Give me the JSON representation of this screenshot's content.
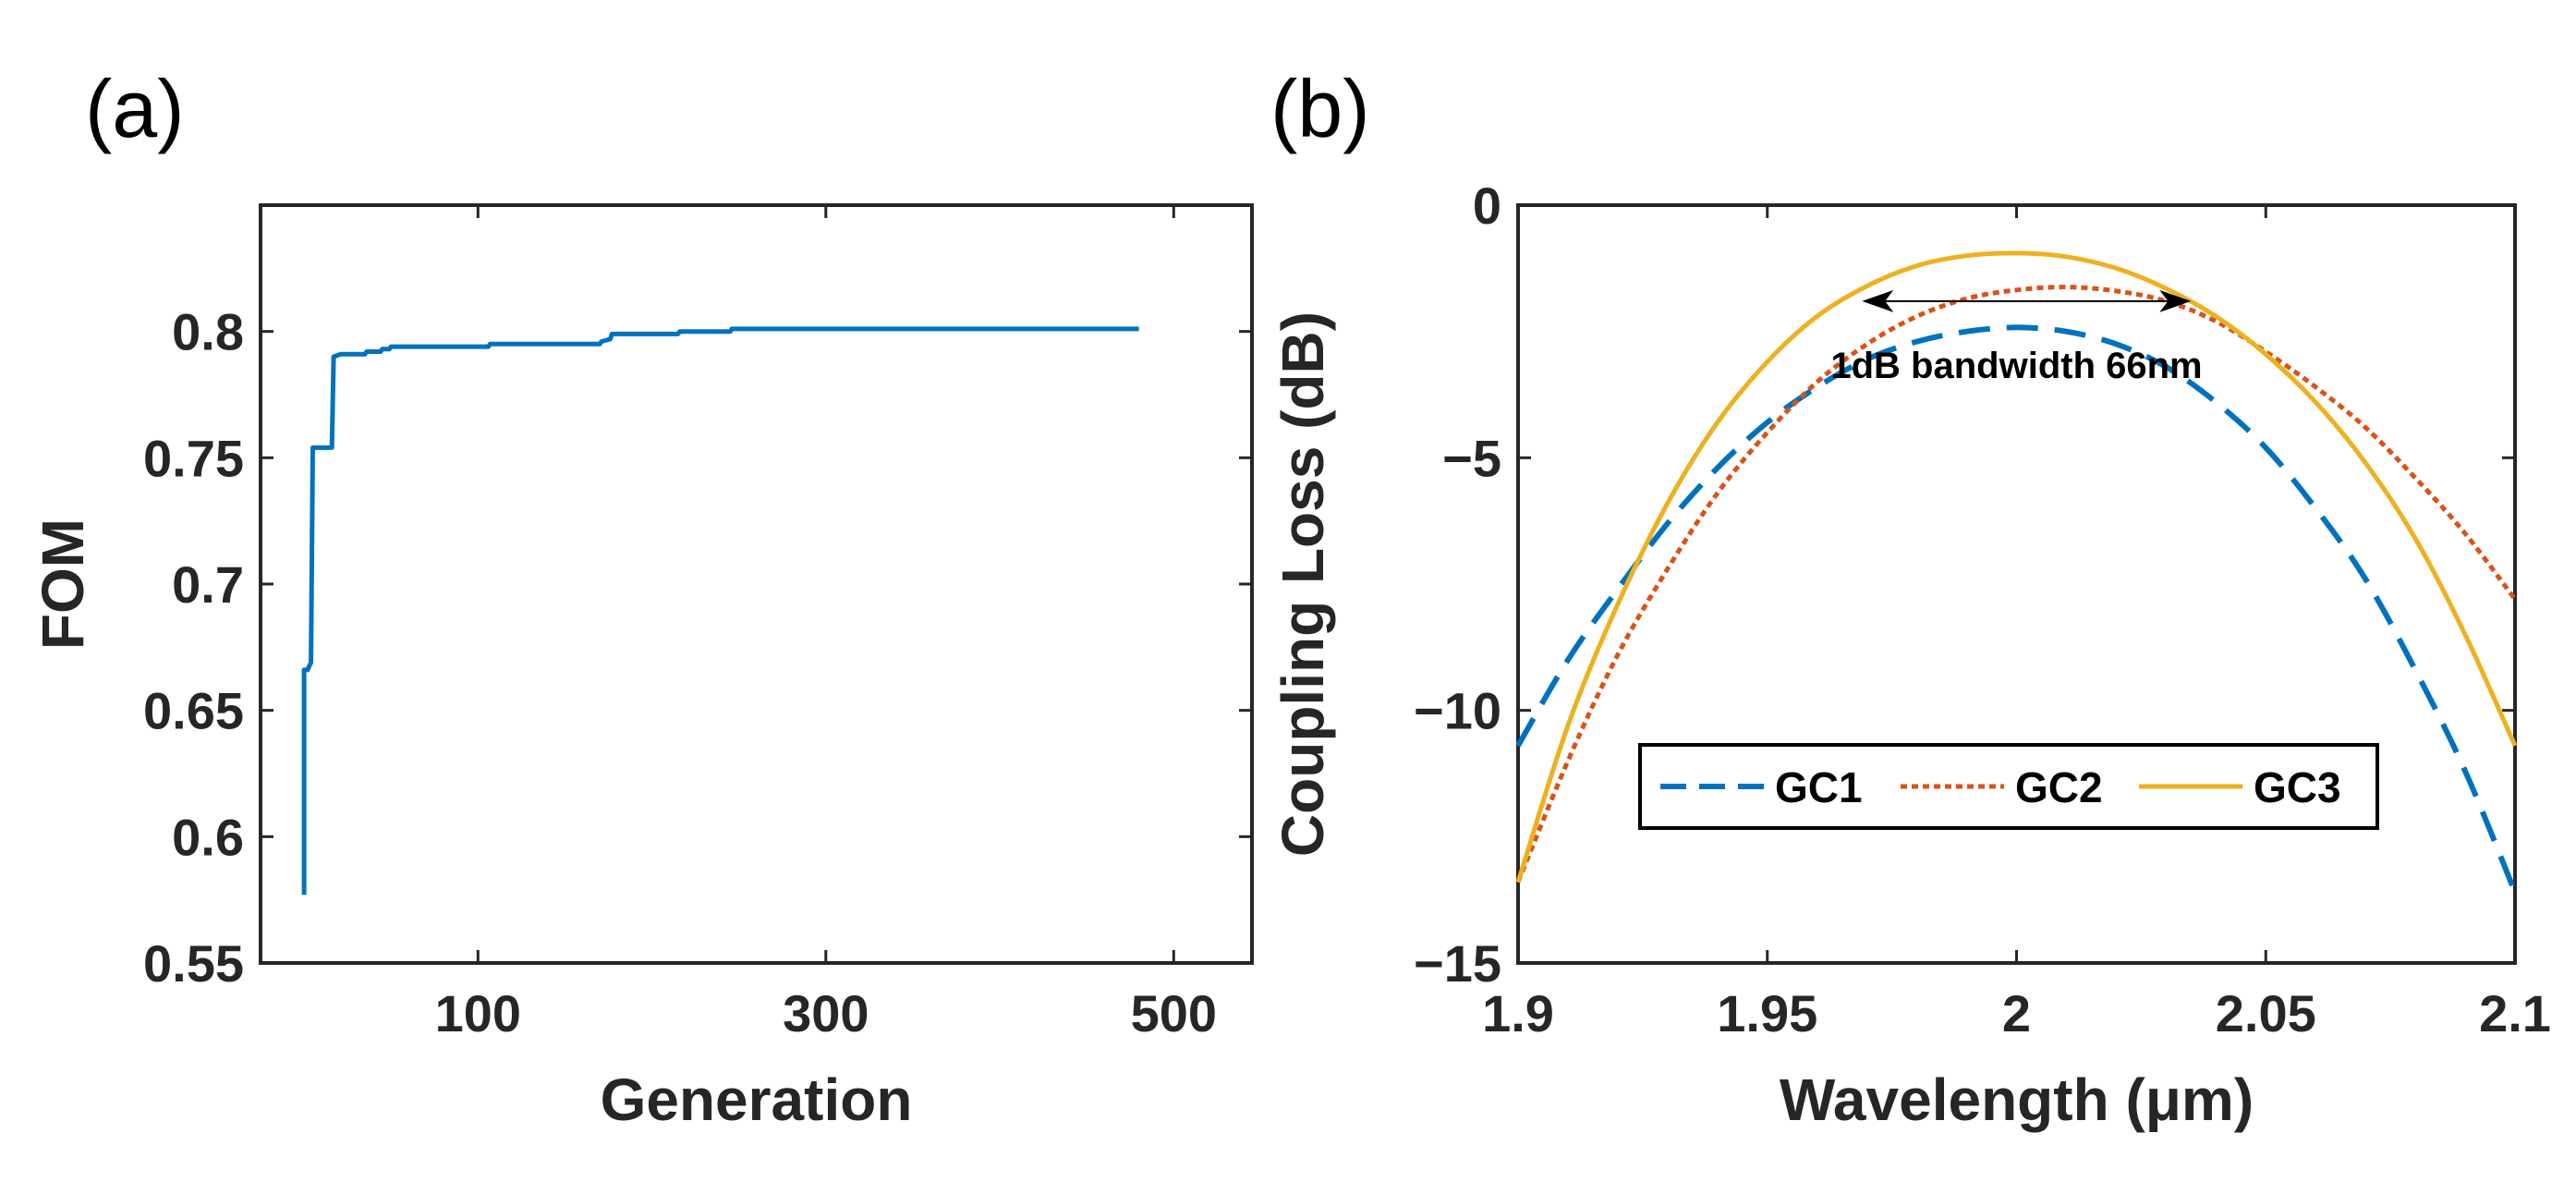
{
  "chart_data": [
    {
      "panel": "(a)",
      "type": "line",
      "xlabel": "Generation",
      "ylabel": "FOM",
      "xlim": [
        -25,
        545
      ],
      "ylim": [
        0.55,
        0.85
      ],
      "xticks": [
        100,
        300,
        500
      ],
      "xtick_labels": [
        "100",
        "300",
        "500"
      ],
      "yticks": [
        0.55,
        0.6,
        0.65,
        0.7,
        0.75,
        0.8
      ],
      "ytick_labels": [
        "0.55",
        "0.6",
        "0.65",
        "0.7",
        "0.75",
        "0.8"
      ],
      "series": [
        {
          "name": "FOM",
          "color": "#0072BD",
          "style": "solid",
          "x": [
            0,
            0,
            2,
            4,
            5,
            7,
            8,
            12,
            16,
            17,
            21,
            35,
            36,
            44,
            45,
            49,
            50,
            106,
            107,
            170,
            171,
            176,
            177,
            215,
            216,
            245,
            246,
            310,
            480
          ],
          "y": [
            0.577,
            0.666,
            0.666,
            0.669,
            0.754,
            0.754,
            0.754,
            0.754,
            0.754,
            0.79,
            0.791,
            0.791,
            0.792,
            0.792,
            0.793,
            0.793,
            0.794,
            0.794,
            0.795,
            0.795,
            0.796,
            0.797,
            0.799,
            0.799,
            0.8,
            0.8,
            0.801,
            0.801,
            0.801
          ]
        }
      ]
    },
    {
      "panel": "(b)",
      "type": "line",
      "xlabel": "Wavelength (μm)",
      "ylabel": "Coupling Loss (dB)",
      "xlim": [
        1.9,
        2.1
      ],
      "ylim": [
        -15,
        0
      ],
      "xticks": [
        1.9,
        1.95,
        2.0,
        2.05,
        2.1
      ],
      "xtick_labels": [
        "1.9",
        "1.95",
        "2",
        "2.05",
        "2.1"
      ],
      "yticks": [
        -15,
        -10,
        -5,
        0
      ],
      "ytick_labels": [
        "−15",
        "−10",
        "−5",
        "0"
      ],
      "annotation": {
        "text": "1dB bandwidth 66nm",
        "arrow_x": [
          1.969,
          2.035
        ],
        "arrow_y": -1.9,
        "text_x": 2.0,
        "text_y": -3.2
      },
      "legend": {
        "placement": "lower-center",
        "entries": [
          "GC1",
          "GC2",
          "GC3"
        ]
      },
      "series": [
        {
          "name": "GC1",
          "color": "#0072BD",
          "style": "dashed",
          "x": [
            1.9,
            1.91,
            1.92,
            1.93,
            1.94,
            1.95,
            1.96,
            1.97,
            1.98,
            1.99,
            2.0,
            2.01,
            2.02,
            2.03,
            2.04,
            2.05,
            2.06,
            2.07,
            2.08,
            2.09,
            2.1
          ],
          "y": [
            -10.7,
            -9.0,
            -7.6,
            -6.3,
            -5.2,
            -4.3,
            -3.6,
            -3.05,
            -2.7,
            -2.5,
            -2.42,
            -2.5,
            -2.75,
            -3.2,
            -3.9,
            -4.8,
            -6.0,
            -7.4,
            -9.2,
            -11.2,
            -13.6
          ]
        },
        {
          "name": "GC2",
          "color": "#D95319",
          "style": "dotted",
          "x": [
            1.9,
            1.91,
            1.92,
            1.93,
            1.94,
            1.95,
            1.96,
            1.97,
            1.98,
            1.99,
            2.0,
            2.01,
            2.02,
            2.03,
            2.04,
            2.05,
            2.06,
            2.07,
            2.08,
            2.09,
            2.1
          ],
          "y": [
            -13.4,
            -11.0,
            -8.9,
            -7.2,
            -5.7,
            -4.5,
            -3.5,
            -2.75,
            -2.2,
            -1.85,
            -1.68,
            -1.62,
            -1.7,
            -1.9,
            -2.3,
            -2.9,
            -3.6,
            -4.4,
            -5.4,
            -6.5,
            -7.8
          ]
        },
        {
          "name": "GC3",
          "color": "#EDB120",
          "style": "solid",
          "x": [
            1.9,
            1.91,
            1.92,
            1.93,
            1.94,
            1.95,
            1.96,
            1.97,
            1.98,
            1.99,
            2.0,
            2.01,
            2.02,
            2.03,
            2.04,
            2.05,
            2.06,
            2.07,
            2.08,
            2.09,
            2.1
          ],
          "y": [
            -13.4,
            -10.3,
            -7.9,
            -5.9,
            -4.3,
            -3.1,
            -2.2,
            -1.6,
            -1.2,
            -1.0,
            -0.95,
            -1.02,
            -1.25,
            -1.65,
            -2.2,
            -2.95,
            -3.9,
            -5.1,
            -6.6,
            -8.5,
            -10.7
          ]
        }
      ]
    }
  ]
}
